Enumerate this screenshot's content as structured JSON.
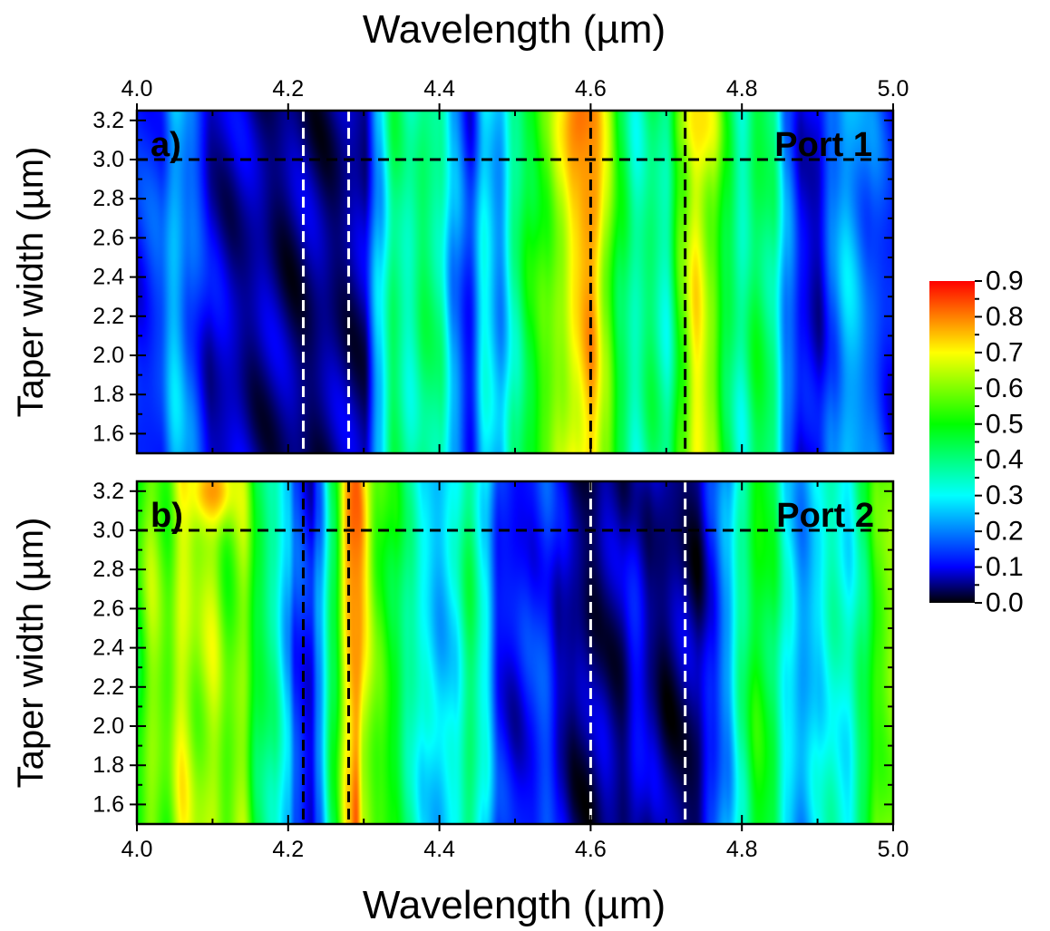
{
  "colors": {
    "colormap": [
      "#000000",
      "#0000ff",
      "#0080ff",
      "#00ffff",
      "#00ff80",
      "#00ff00",
      "#80ff00",
      "#ffff00",
      "#ff8000",
      "#ff0000"
    ],
    "guide_white": "#ffffff",
    "guide_black": "#000000"
  },
  "chart_data": [
    {
      "type": "heatmap",
      "panel_label": "a)",
      "annotation": "Port 1",
      "title": "",
      "xlabel": "Wavelength (µm)",
      "ylabel": "Taper width (µm)",
      "xlim": [
        4.0,
        5.0
      ],
      "ylim": [
        1.5,
        3.25
      ],
      "x_ticks": [
        "4.0",
        "4.2",
        "4.4",
        "4.6",
        "4.8",
        "5.0"
      ],
      "y_ticks": [
        "1.6",
        "1.8",
        "2.0",
        "2.2",
        "2.4",
        "2.6",
        "2.8",
        "3.0",
        "3.2"
      ],
      "vertical_guides": [
        {
          "x": 4.22,
          "color": "white"
        },
        {
          "x": 4.28,
          "color": "white"
        },
        {
          "x": 4.6,
          "color": "black"
        },
        {
          "x": 4.725,
          "color": "black"
        }
      ],
      "horizontal_guide": {
        "y": 3.0,
        "color": "black"
      },
      "profile": [
        [
          4.0,
          0.12
        ],
        [
          4.03,
          0.15
        ],
        [
          4.05,
          0.25
        ],
        [
          4.07,
          0.18
        ],
        [
          4.1,
          0.08
        ],
        [
          4.13,
          0.07
        ],
        [
          4.16,
          0.06
        ],
        [
          4.2,
          0.05
        ],
        [
          4.25,
          0.05
        ],
        [
          4.3,
          0.06
        ],
        [
          4.32,
          0.25
        ],
        [
          4.34,
          0.42
        ],
        [
          4.36,
          0.35
        ],
        [
          4.38,
          0.42
        ],
        [
          4.4,
          0.38
        ],
        [
          4.42,
          0.22
        ],
        [
          4.44,
          0.12
        ],
        [
          4.46,
          0.3
        ],
        [
          4.48,
          0.22
        ],
        [
          4.5,
          0.38
        ],
        [
          4.52,
          0.48
        ],
        [
          4.54,
          0.55
        ],
        [
          4.56,
          0.62
        ],
        [
          4.58,
          0.7
        ],
        [
          4.6,
          0.76
        ],
        [
          4.62,
          0.6
        ],
        [
          4.64,
          0.45
        ],
        [
          4.66,
          0.35
        ],
        [
          4.68,
          0.42
        ],
        [
          4.7,
          0.35
        ],
        [
          4.72,
          0.55
        ],
        [
          4.74,
          0.7
        ],
        [
          4.76,
          0.6
        ],
        [
          4.78,
          0.45
        ],
        [
          4.8,
          0.35
        ],
        [
          4.82,
          0.45
        ],
        [
          4.84,
          0.4
        ],
        [
          4.86,
          0.2
        ],
        [
          4.88,
          0.1
        ],
        [
          4.9,
          0.08
        ],
        [
          4.92,
          0.18
        ],
        [
          4.94,
          0.25
        ],
        [
          4.97,
          0.18
        ],
        [
          5.0,
          0.12
        ]
      ],
      "hot_spots": [
        {
          "x": 4.59,
          "y": 3.2,
          "value": 0.82,
          "sx": 0.02,
          "sy": 0.22
        },
        {
          "x": 4.6,
          "y": 2.8,
          "value": 0.78,
          "sx": 0.012,
          "sy": 0.3
        },
        {
          "x": 4.745,
          "y": 3.2,
          "value": 0.72,
          "sx": 0.018,
          "sy": 0.15
        }
      ]
    },
    {
      "type": "heatmap",
      "panel_label": "b)",
      "annotation": "Port 2",
      "title": "",
      "xlabel": "Wavelength (µm)",
      "ylabel": "Taper width (µm)",
      "xlim": [
        4.0,
        5.0
      ],
      "ylim": [
        1.5,
        3.25
      ],
      "x_ticks": [
        "4.0",
        "4.2",
        "4.4",
        "4.6",
        "4.8",
        "5.0"
      ],
      "y_ticks": [
        "1.6",
        "1.8",
        "2.0",
        "2.2",
        "2.4",
        "2.6",
        "2.8",
        "3.0",
        "3.2"
      ],
      "vertical_guides": [
        {
          "x": 4.22,
          "color": "black"
        },
        {
          "x": 4.28,
          "color": "black"
        },
        {
          "x": 4.6,
          "color": "white"
        },
        {
          "x": 4.725,
          "color": "white"
        }
      ],
      "horizontal_guide": {
        "y": 3.0,
        "color": "black"
      },
      "profile": [
        [
          4.0,
          0.5
        ],
        [
          4.02,
          0.62
        ],
        [
          4.04,
          0.55
        ],
        [
          4.06,
          0.68
        ],
        [
          4.08,
          0.6
        ],
        [
          4.1,
          0.65
        ],
        [
          4.12,
          0.55
        ],
        [
          4.14,
          0.62
        ],
        [
          4.16,
          0.45
        ],
        [
          4.18,
          0.38
        ],
        [
          4.2,
          0.25
        ],
        [
          4.21,
          0.15
        ],
        [
          4.23,
          0.1
        ],
        [
          4.24,
          0.2
        ],
        [
          4.26,
          0.45
        ],
        [
          4.28,
          0.7
        ],
        [
          4.29,
          0.8
        ],
        [
          4.3,
          0.62
        ],
        [
          4.32,
          0.55
        ],
        [
          4.34,
          0.48
        ],
        [
          4.36,
          0.38
        ],
        [
          4.38,
          0.3
        ],
        [
          4.4,
          0.25
        ],
        [
          4.42,
          0.3
        ],
        [
          4.44,
          0.42
        ],
        [
          4.46,
          0.3
        ],
        [
          4.48,
          0.12
        ],
        [
          4.5,
          0.1
        ],
        [
          4.52,
          0.12
        ],
        [
          4.54,
          0.15
        ],
        [
          4.56,
          0.08
        ],
        [
          4.58,
          0.05
        ],
        [
          4.6,
          0.04
        ],
        [
          4.62,
          0.06
        ],
        [
          4.64,
          0.05
        ],
        [
          4.66,
          0.1
        ],
        [
          4.68,
          0.06
        ],
        [
          4.7,
          0.04
        ],
        [
          4.72,
          0.05
        ],
        [
          4.74,
          0.04
        ],
        [
          4.76,
          0.12
        ],
        [
          4.78,
          0.22
        ],
        [
          4.8,
          0.38
        ],
        [
          4.82,
          0.5
        ],
        [
          4.84,
          0.45
        ],
        [
          4.86,
          0.3
        ],
        [
          4.88,
          0.22
        ],
        [
          4.9,
          0.28
        ],
        [
          4.92,
          0.35
        ],
        [
          4.94,
          0.3
        ],
        [
          4.96,
          0.42
        ],
        [
          4.98,
          0.55
        ],
        [
          5.0,
          0.6
        ]
      ],
      "hot_spots": [
        {
          "x": 4.1,
          "y": 3.2,
          "value": 0.78,
          "sx": 0.02,
          "sy": 0.12
        },
        {
          "x": 4.29,
          "y": 3.05,
          "value": 0.85,
          "sx": 0.01,
          "sy": 0.25
        },
        {
          "x": 4.29,
          "y": 2.5,
          "value": 0.78,
          "sx": 0.01,
          "sy": 0.4
        }
      ]
    }
  ],
  "colorbar": {
    "min": 0.0,
    "max": 0.9,
    "tick_labels": [
      "0.9",
      "0.8",
      "0.7",
      "0.6",
      "0.5",
      "0.4",
      "0.3",
      "0.2",
      "0.1",
      "0.0"
    ]
  },
  "axis_titles": {
    "top_xlabel": "Wavelength (µm)",
    "bottom_xlabel": "Wavelength (µm)"
  }
}
